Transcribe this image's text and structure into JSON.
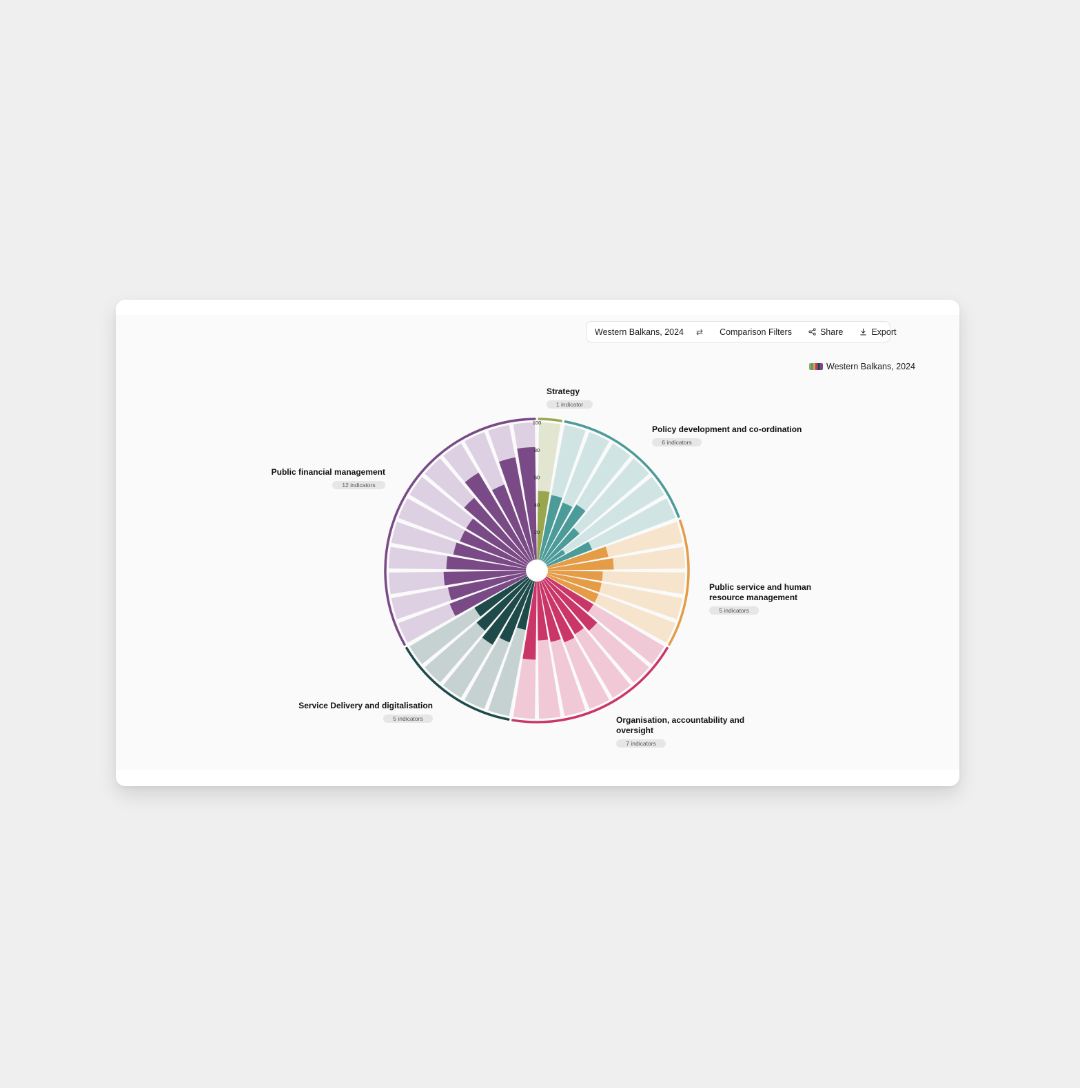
{
  "toolbar": {
    "selection": "Western Balkans, 2024",
    "compare_icon": "swap-arrows-icon",
    "comparison_filters": "Comparison Filters",
    "share": "Share",
    "share_icon": "share-icon",
    "export": "Export",
    "export_icon": "download-icon"
  },
  "legend": {
    "label": "Western Balkans, 2024"
  },
  "chart_data": {
    "type": "radial-bar",
    "series_name": "Western Balkans, 2024",
    "radial_ticks": [
      100,
      80,
      60,
      40,
      20
    ],
    "value_range": [
      0,
      100
    ],
    "groups": [
      {
        "name": "Strategy",
        "count_label": "1 indicator",
        "color": "#9aa64d",
        "light": "#e2e5cf",
        "values": [
          50
        ]
      },
      {
        "name": "Policy development and co-ordination",
        "count_label": "6 indicators",
        "color": "#4b9b98",
        "light": "#d0e4e3",
        "values": [
          48,
          45,
          48,
          33,
          16,
          35
        ]
      },
      {
        "name": "Public service and human resource management",
        "count_label": "5 indicators",
        "color": "#e59c47",
        "light": "#f6e4cc",
        "values": [
          45,
          48,
          40,
          40,
          40
        ]
      },
      {
        "name": "Organisation, accountability and oversight",
        "count_label": "7 indicators",
        "color": "#c93667",
        "light": "#f1c8d5",
        "values": [
          40,
          50,
          46,
          48,
          45,
          43,
          57
        ]
      },
      {
        "name": "Service Delivery and digitalisation",
        "count_label": "5 indicators",
        "color": "#1e4a4a",
        "light": "#c6d1d1",
        "values": [
          36,
          48,
          55,
          50,
          45
        ]
      },
      {
        "name": "Public financial management",
        "count_label": "12 indicators",
        "color": "#7a4a86",
        "light": "#ddd0e2",
        "values": [
          60,
          58,
          60,
          58,
          54,
          52,
          52,
          62,
          75,
          59,
          76,
          82
        ]
      }
    ]
  }
}
